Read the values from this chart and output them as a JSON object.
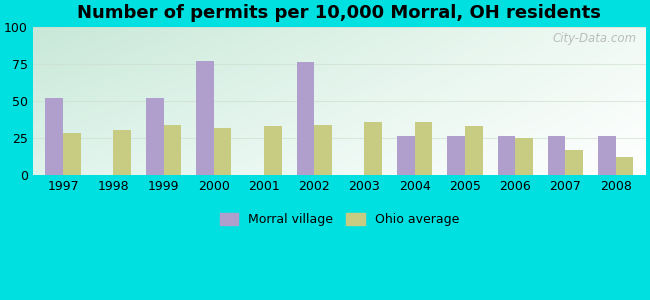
{
  "title": "Number of permits per 10,000 Morral, OH residents",
  "years": [
    1997,
    1998,
    1999,
    2000,
    2001,
    2002,
    2003,
    2004,
    2005,
    2006,
    2007,
    2008
  ],
  "morral_values": [
    52,
    0,
    52,
    77,
    0,
    76,
    0,
    26,
    26,
    26,
    26,
    26
  ],
  "ohio_values": [
    28,
    30,
    34,
    32,
    33,
    34,
    36,
    36,
    33,
    25,
    17,
    12
  ],
  "morral_color": "#b09fcc",
  "ohio_color": "#c8cc82",
  "ylim": [
    0,
    100
  ],
  "yticks": [
    0,
    25,
    50,
    75,
    100
  ],
  "outer_bg": "#00e0e0",
  "legend_morral": "Morral village",
  "legend_ohio": "Ohio average",
  "watermark": "City-Data.com",
  "title_fontsize": 13,
  "tick_fontsize": 9,
  "legend_fontsize": 9,
  "bar_width": 0.35,
  "grad_colors": [
    "#d0ece0",
    "#f0faf4",
    "#ffffff"
  ],
  "grid_color": "#ccddcc",
  "grid_alpha": 0.6
}
